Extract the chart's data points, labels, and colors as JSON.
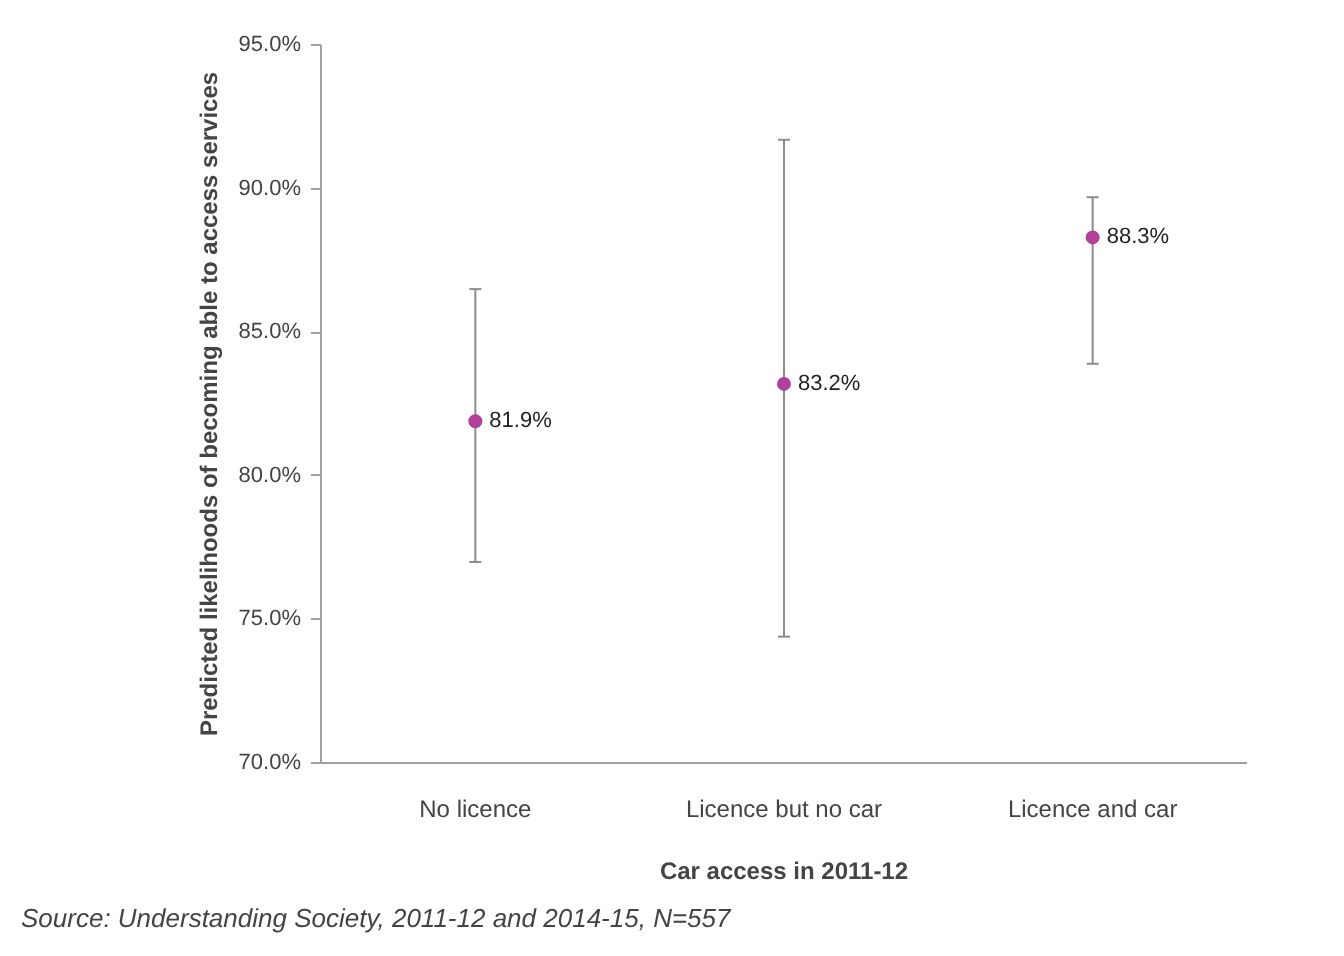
{
  "chart_data": {
    "type": "scatter",
    "categories": [
      "No licence",
      "Licence but no car",
      "Licence and car"
    ],
    "values": [
      81.9,
      83.2,
      88.3
    ],
    "color": "#b0409a",
    "marker": "circle",
    "errors": [
      [
        77.0,
        86.5
      ],
      [
        74.4,
        91.7
      ],
      [
        83.9,
        89.7
      ]
    ],
    "value_labels": [
      "81.9%",
      "83.2%",
      "88.3%"
    ],
    "xlabel": "Car access in 2011-12",
    "ylabel": "Predicted likelihoods of becoming able to access services",
    "ylim": [
      70,
      95
    ],
    "yticks": [
      {
        "value": 70,
        "label": "70.0%"
      },
      {
        "value": 75,
        "label": "75.0%"
      },
      {
        "value": 80,
        "label": "80.0%"
      },
      {
        "value": 85,
        "label": "85.0%"
      },
      {
        "value": 90,
        "label": "90.0%"
      },
      {
        "value": 95,
        "label": "95.0%"
      }
    ],
    "grid": false,
    "annotations": [
      "Source: Understanding Society, 2011-12 and 2014-15, N=557"
    ]
  }
}
